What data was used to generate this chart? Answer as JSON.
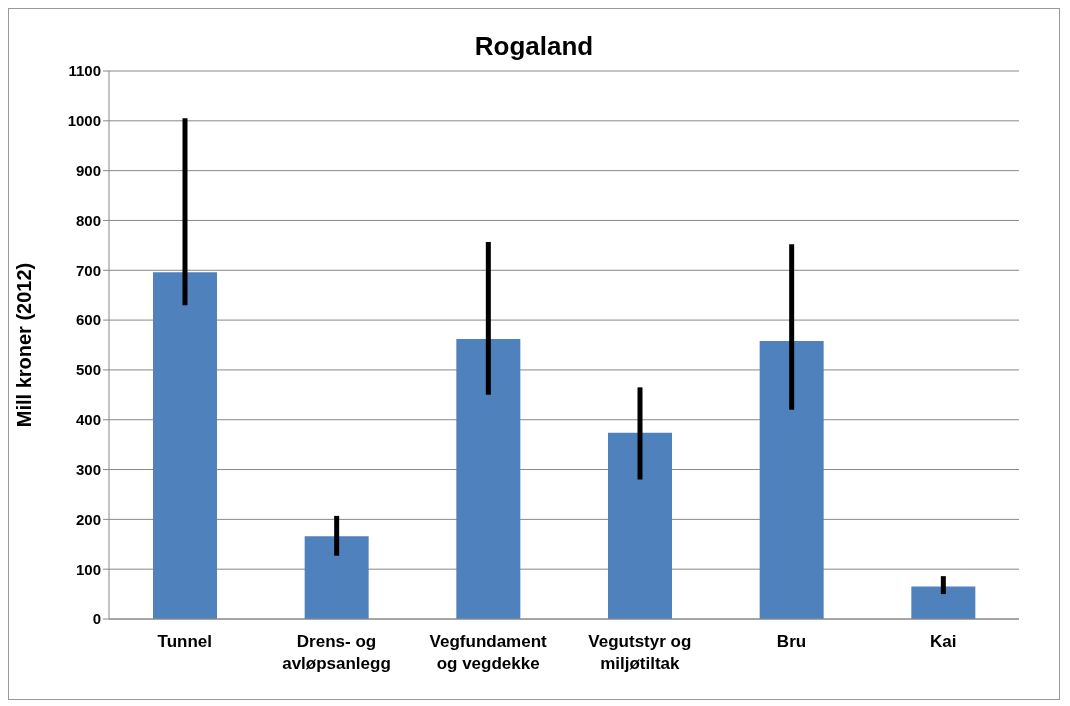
{
  "chart_data": {
    "type": "bar",
    "title": "Rogaland",
    "ylabel": "Mill kroner (2012)",
    "categories": [
      "Tunnel",
      "Drens- og avløpsanlegg",
      "Vegfundament og vegdekke",
      "Vegutstyr og miljøtiltak",
      "Bru",
      "Kai"
    ],
    "values": [
      696,
      166,
      562,
      374,
      558,
      65
    ],
    "errors": [
      [
        630,
        1005
      ],
      [
        127,
        207
      ],
      [
        450,
        757
      ],
      [
        280,
        465
      ],
      [
        420,
        752
      ],
      [
        50,
        86
      ]
    ],
    "color": "#4f81bd",
    "ylim": [
      0,
      1100
    ],
    "yticks": [
      0,
      100,
      200,
      300,
      400,
      500,
      600,
      700,
      800,
      900,
      1000,
      1100
    ],
    "grid": "y",
    "legend": false
  }
}
